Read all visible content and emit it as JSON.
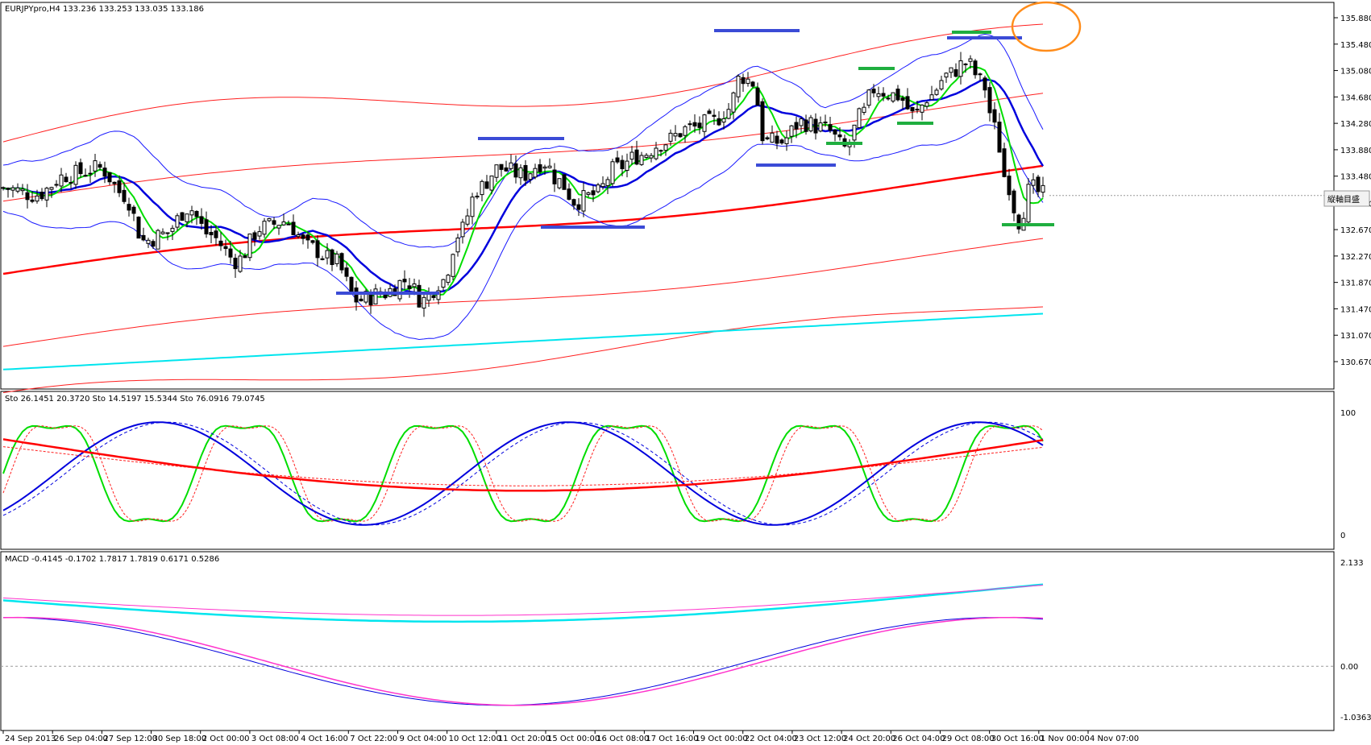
{
  "main": {
    "header": "EURJPYpro,H4  133.236 133.253 133.035 133.186",
    "price_ticks": [
      "135.880",
      "135.480",
      "135.080",
      "134.680",
      "134.280",
      "133.880",
      "133.480",
      "133.070",
      "132.670",
      "132.270",
      "131.870",
      "131.470",
      "131.070",
      "130.670"
    ],
    "current_price_tag": "縦軸目盛"
  },
  "stoch": {
    "header": "Sto 26.1451 20.3720  Sto 14.5197 15.5344  Sto 76.0916 79.0745",
    "ticks": [
      "100",
      "0"
    ]
  },
  "macd": {
    "header": "MACD -0.4145 -0.1702 1.7817 1.7819 0.6171 0.5286",
    "ticks": [
      "2.133",
      "0.00",
      "-1.0363"
    ]
  },
  "time_labels": [
    "24 Sep 2013",
    "26 Sep 04:00",
    "27 Sep 12:00",
    "30 Sep 18:00",
    "2 Oct 00:00",
    "3 Oct 08:00",
    "4 Oct 16:00",
    "7 Oct 22:00",
    "9 Oct 04:00",
    "10 Oct 12:00",
    "11 Oct 20:00",
    "15 Oct 00:00",
    "16 Oct 08:00",
    "17 Oct 16:00",
    "19 Oct 00:00",
    "22 Oct 04:00",
    "23 Oct 12:00",
    "24 Oct 20:00",
    "26 Oct 04:00",
    "29 Oct 08:00",
    "30 Oct 16:00",
    "1 Nov 00:00",
    "4 Nov 07:00"
  ],
  "colors": {
    "bollinger": "#1a1aff",
    "envelope": "#ff2020",
    "ema_fast": "#00dd00",
    "ema_mid": "#0000dd",
    "ma_long": "#ff0000",
    "ma_cyan": "#00e5ee",
    "marker_blue": "#3b4bd6",
    "marker_green": "#1fae3f",
    "circle": "#ff8c1a",
    "macd_magenta": "#ff33cc"
  },
  "chart_data": [
    {
      "type": "line",
      "title": "EURJPYpro,H4",
      "ylim": [
        130.67,
        135.88
      ],
      "x": [
        "24 Sep 2013",
        "26 Sep 04:00",
        "27 Sep 12:00",
        "30 Sep 18:00",
        "2 Oct 00:00",
        "3 Oct 08:00",
        "4 Oct 16:00",
        "7 Oct 22:00",
        "9 Oct 04:00",
        "10 Oct 12:00",
        "11 Oct 20:00",
        "15 Oct 00:00",
        "16 Oct 08:00",
        "17 Oct 16:00",
        "19 Oct 00:00",
        "22 Oct 04:00",
        "23 Oct 12:00",
        "24 Oct 20:00",
        "26 Oct 04:00",
        "29 Oct 08:00",
        "30 Oct 16:00",
        "1 Nov 00:00",
        "4 Nov 07:00"
      ],
      "series": [
        {
          "values": [
            133.3,
            133.4,
            133.1,
            132.8,
            132.7,
            132.8,
            132.3,
            131.7,
            131.6,
            132.0,
            133.5,
            133.6,
            133.3,
            133.7,
            134.1,
            134.7,
            134.1,
            134.2,
            134.9,
            134.6,
            135.2,
            133.4,
            133.2
          ]
        }
      ],
      "last": {
        "open": 133.236,
        "high": 133.253,
        "low": 133.035,
        "close": 133.186
      }
    },
    {
      "type": "line",
      "title": "Sto",
      "ylim": [
        0,
        100
      ],
      "values_reported": [
        26.1451,
        20.372,
        14.5197,
        15.5344,
        76.0916,
        79.0745
      ]
    },
    {
      "type": "line",
      "title": "MACD",
      "ylim": [
        -1.0363,
        2.133
      ],
      "values_reported": [
        -0.4145,
        -0.1702,
        1.7817,
        1.7819,
        0.6171,
        0.5286
      ]
    }
  ]
}
